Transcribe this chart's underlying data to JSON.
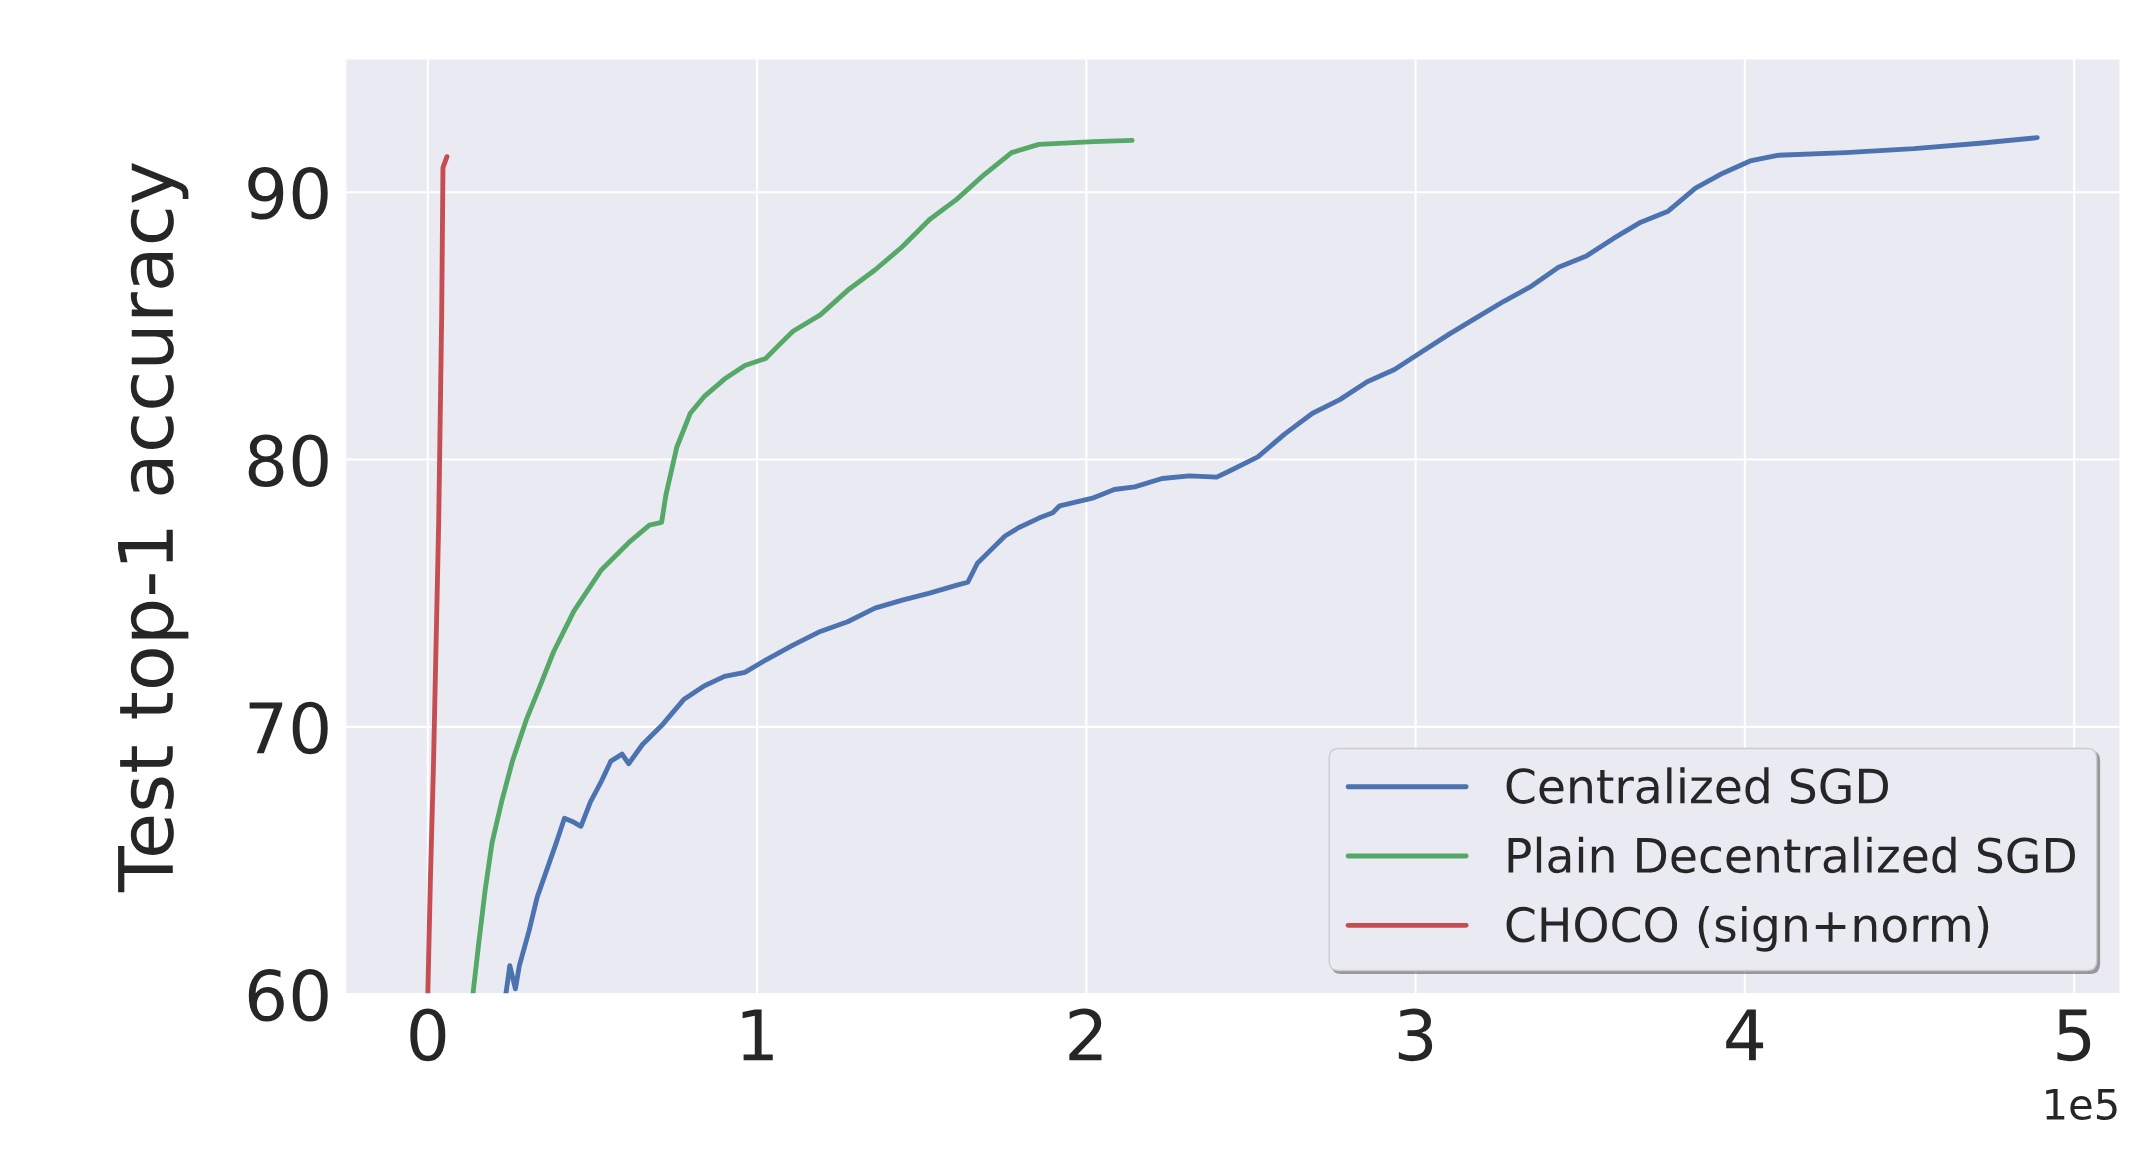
{
  "chart_data": {
    "type": "line",
    "ylabel": "Test top-1 accuracy",
    "xlim": [
      -0.25,
      5.14
    ],
    "ylim": [
      60,
      95
    ],
    "xticks": [
      0,
      1,
      2,
      3,
      4,
      5
    ],
    "yticks": [
      60,
      70,
      80,
      90
    ],
    "grid": true,
    "legend": "bottom right",
    "marker": "none",
    "line_style": "solid",
    "annotations": [
      "1e5"
    ],
    "series": [
      {
        "name": "Centralized SGD",
        "color": "#4c72b0",
        "x": [
          0.237,
          0.249,
          0.266,
          0.278,
          0.307,
          0.332,
          0.361,
          0.39,
          0.415,
          0.444,
          0.465,
          0.494,
          0.527,
          0.556,
          0.59,
          0.61,
          0.652,
          0.714,
          0.777,
          0.839,
          0.901,
          0.963,
          1.026,
          1.109,
          1.192,
          1.275,
          1.358,
          1.441,
          1.524,
          1.607,
          1.64,
          1.669,
          1.711,
          1.753,
          1.794,
          1.856,
          1.898,
          1.919,
          2.022,
          2.085,
          2.147,
          2.23,
          2.313,
          2.396,
          2.438,
          2.521,
          2.604,
          2.687,
          2.77,
          2.853,
          2.936,
          3.019,
          3.102,
          3.185,
          3.268,
          3.351,
          3.434,
          3.517,
          3.601,
          3.684,
          3.767,
          3.85,
          3.933,
          4.016,
          4.099,
          4.306,
          4.514,
          4.722,
          4.888
        ],
        "values": [
          60.0,
          61.07,
          60.2,
          61.07,
          62.35,
          63.62,
          64.64,
          65.66,
          66.58,
          66.43,
          66.28,
          67.19,
          67.96,
          68.72,
          68.98,
          68.62,
          69.34,
          70.1,
          71.02,
          71.53,
          71.89,
          72.04,
          72.5,
          73.06,
          73.57,
          73.93,
          74.44,
          74.74,
          75.0,
          75.3,
          75.41,
          76.12,
          76.63,
          77.14,
          77.45,
          77.81,
          78.01,
          78.27,
          78.57,
          78.88,
          78.98,
          79.29,
          79.39,
          79.34,
          79.59,
          80.1,
          80.97,
          81.73,
          82.24,
          82.91,
          83.37,
          84.03,
          84.69,
          85.31,
          85.92,
          86.48,
          87.19,
          87.6,
          88.27,
          88.88,
          89.29,
          90.15,
          90.71,
          91.17,
          91.38,
          91.48,
          91.63,
          91.84,
          92.04
        ]
      },
      {
        "name": "Plain Decentralized SGD",
        "color": "#55a868",
        "x": [
          0.137,
          0.154,
          0.174,
          0.195,
          0.224,
          0.257,
          0.299,
          0.341,
          0.382,
          0.444,
          0.527,
          0.61,
          0.673,
          0.71,
          0.723,
          0.756,
          0.797,
          0.839,
          0.901,
          0.963,
          1.026,
          1.067,
          1.109,
          1.192,
          1.275,
          1.358,
          1.441,
          1.524,
          1.607,
          1.69,
          1.773,
          1.856,
          2.022,
          2.139
        ],
        "values": [
          60.0,
          61.84,
          63.88,
          65.66,
          67.19,
          68.72,
          70.26,
          71.53,
          72.81,
          74.34,
          75.87,
          76.89,
          77.55,
          77.65,
          78.67,
          80.46,
          81.73,
          82.35,
          83.01,
          83.52,
          83.78,
          84.29,
          84.8,
          85.41,
          86.33,
          87.09,
          87.96,
          88.98,
          89.74,
          90.66,
          91.48,
          91.79,
          91.89,
          91.94
        ]
      },
      {
        "name": "CHOCO (sign+norm)",
        "color": "#c44e52",
        "x": [
          0.0,
          0.008,
          0.017,
          0.025,
          0.033,
          0.042,
          0.046,
          0.058
        ],
        "values": [
          60.0,
          64.39,
          68.47,
          73.06,
          77.65,
          85.31,
          90.92,
          91.33
        ]
      }
    ]
  }
}
